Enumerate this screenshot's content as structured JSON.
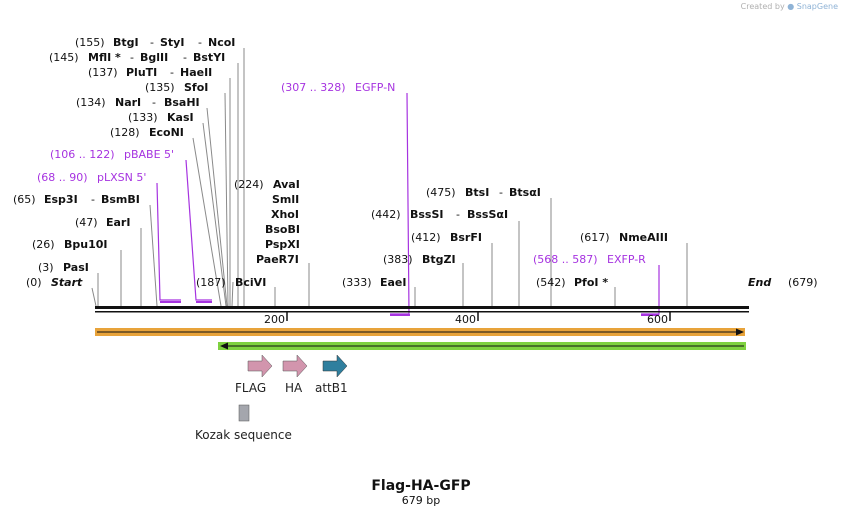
{
  "watermark": {
    "created_by": "Created by",
    "brand": "SnapGene"
  },
  "map": {
    "title": "Flag-HA-GFP",
    "length_label": "679 bp",
    "start": {
      "pos": "(0)",
      "label": "Start"
    },
    "end": {
      "pos": "(679)",
      "label": "End"
    },
    "ticks": [
      "200",
      "400",
      "600"
    ],
    "sites": [
      {
        "pos": "(155)",
        "names": [
          "BtgI",
          "StyI",
          "NcoI"
        ]
      },
      {
        "pos": "(145)",
        "names": [
          "MflI *",
          "BglII",
          "BstYI"
        ]
      },
      {
        "pos": "(137)",
        "names": [
          "PluTI",
          "HaeII"
        ]
      },
      {
        "pos": "(135)",
        "names": [
          "SfoI"
        ]
      },
      {
        "pos": "(134)",
        "names": [
          "NarI",
          "BsaHI"
        ]
      },
      {
        "pos": "(133)",
        "names": [
          "KasI"
        ]
      },
      {
        "pos": "(128)",
        "names": [
          "EcoNI"
        ]
      },
      {
        "pos": "(65)",
        "names": [
          "Esp3I",
          "BsmBI"
        ]
      },
      {
        "pos": "(47)",
        "names": [
          "EarI"
        ]
      },
      {
        "pos": "(26)",
        "names": [
          "Bpu10I"
        ]
      },
      {
        "pos": "(3)",
        "names": [
          "PasI"
        ]
      },
      {
        "pos": "(187)",
        "names": [
          "BciVI"
        ]
      },
      {
        "pos": "(224)",
        "names": [
          "AvaI"
        ]
      },
      {
        "pos": "",
        "names": [
          "SmlI"
        ]
      },
      {
        "pos": "",
        "names": [
          "XhoI"
        ]
      },
      {
        "pos": "",
        "names": [
          "BsoBI"
        ]
      },
      {
        "pos": "",
        "names": [
          "PspXI"
        ]
      },
      {
        "pos": "",
        "names": [
          "PaeR7I"
        ]
      },
      {
        "pos": "(333)",
        "names": [
          "EaeI"
        ]
      },
      {
        "pos": "(383)",
        "names": [
          "BtgZI"
        ]
      },
      {
        "pos": "(412)",
        "names": [
          "BsrFI"
        ]
      },
      {
        "pos": "(442)",
        "names": [
          "BssSI",
          "BssSαI"
        ]
      },
      {
        "pos": "(475)",
        "names": [
          "BtsI",
          "BtsαI"
        ]
      },
      {
        "pos": "(542)",
        "names": [
          "PfoI *"
        ]
      },
      {
        "pos": "(617)",
        "names": [
          "NmeAIII"
        ]
      }
    ],
    "primers": [
      {
        "range": "(106 .. 122)",
        "name": "pBABE 5'"
      },
      {
        "range": "(68 .. 90)",
        "name": "pLXSN 5'"
      },
      {
        "range": "(307 .. 328)",
        "name": "EGFP-N"
      },
      {
        "range": "(568 .. 587)",
        "name": "EXFP-R"
      }
    ],
    "features": [
      {
        "name": "FLAG",
        "color": "#d295ad"
      },
      {
        "name": "HA",
        "color": "#d295ad"
      },
      {
        "name": "attB1",
        "color": "#2f7f9e"
      },
      {
        "name": "Kozak sequence",
        "color": "#a4a6ad"
      }
    ],
    "colors": {
      "orf_forward": "#e8a33a",
      "orf_reverse": "#7ed13f",
      "primer": "#a633e0",
      "backbone": "#111111"
    }
  }
}
